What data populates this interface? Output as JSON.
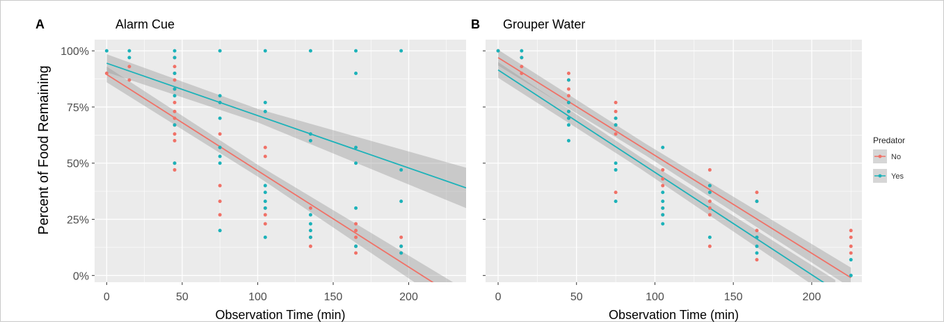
{
  "figure": {
    "ylabel": "Percent of Food Remaining",
    "legend": {
      "title": "Predator",
      "items": [
        {
          "label": "No",
          "color": "#F07167"
        },
        {
          "label": "Yes",
          "color": "#1CB2B9"
        }
      ]
    }
  },
  "chart_data": [
    {
      "type": "scatter",
      "panel_letter": "A",
      "title": "Alarm Cue",
      "xlabel": "Observation Time (min)",
      "ylabel": "Percent of Food Remaining",
      "xlim": [
        -8,
        238
      ],
      "ylim": [
        -0.03,
        1.05
      ],
      "x_ticks": [
        0,
        50,
        100,
        150,
        200
      ],
      "x_tick_labels": [
        "0",
        "50",
        "100",
        "150",
        "200"
      ],
      "y_ticks": [
        0,
        0.25,
        0.5,
        0.75,
        1.0
      ],
      "y_tick_labels": [
        "0%",
        "25%",
        "50%",
        "75%",
        "100%"
      ],
      "grid": true,
      "series": [
        {
          "name": "No",
          "color": "#F07167",
          "points": [
            [
              0,
              0.9
            ],
            [
              15,
              0.93
            ],
            [
              15,
              0.87
            ],
            [
              45,
              0.97
            ],
            [
              45,
              0.93
            ],
            [
              45,
              0.9
            ],
            [
              45,
              0.87
            ],
            [
              45,
              0.83
            ],
            [
              45,
              0.77
            ],
            [
              45,
              0.73
            ],
            [
              45,
              0.7
            ],
            [
              45,
              0.67
            ],
            [
              45,
              0.63
            ],
            [
              45,
              0.6
            ],
            [
              45,
              0.5
            ],
            [
              45,
              0.47
            ],
            [
              75,
              0.63
            ],
            [
              75,
              0.57
            ],
            [
              75,
              0.4
            ],
            [
              75,
              0.33
            ],
            [
              75,
              0.27
            ],
            [
              105,
              0.57
            ],
            [
              105,
              0.53
            ],
            [
              105,
              0.3
            ],
            [
              105,
              0.27
            ],
            [
              105,
              0.23
            ],
            [
              135,
              0.3
            ],
            [
              135,
              0.17
            ],
            [
              135,
              0.13
            ],
            [
              165,
              0.23
            ],
            [
              165,
              0.2
            ],
            [
              165,
              0.17
            ],
            [
              165,
              0.13
            ],
            [
              165,
              0.1
            ],
            [
              195,
              0.17
            ],
            [
              195,
              0.13
            ],
            [
              195,
              0.1
            ]
          ],
          "fit": {
            "x": [
              0,
              238
            ],
            "y": [
              0.895,
              -0.125
            ]
          },
          "ci_halfwidth_at_ends": [
            0.035,
            0.06
          ]
        },
        {
          "name": "Yes",
          "color": "#1CB2B9",
          "points": [
            [
              0,
              1.0
            ],
            [
              15,
              1.0
            ],
            [
              15,
              0.97
            ],
            [
              45,
              1.0
            ],
            [
              45,
              0.97
            ],
            [
              45,
              0.9
            ],
            [
              45,
              0.83
            ],
            [
              45,
              0.8
            ],
            [
              45,
              0.67
            ],
            [
              45,
              0.5
            ],
            [
              75,
              1.0
            ],
            [
              75,
              0.8
            ],
            [
              75,
              0.77
            ],
            [
              75,
              0.7
            ],
            [
              75,
              0.57
            ],
            [
              75,
              0.53
            ],
            [
              75,
              0.5
            ],
            [
              75,
              0.2
            ],
            [
              105,
              1.0
            ],
            [
              105,
              0.77
            ],
            [
              105,
              0.73
            ],
            [
              105,
              0.4
            ],
            [
              105,
              0.37
            ],
            [
              105,
              0.33
            ],
            [
              105,
              0.3
            ],
            [
              105,
              0.17
            ],
            [
              135,
              1.0
            ],
            [
              135,
              0.63
            ],
            [
              135,
              0.6
            ],
            [
              135,
              0.27
            ],
            [
              135,
              0.23
            ],
            [
              135,
              0.2
            ],
            [
              135,
              0.17
            ],
            [
              165,
              1.0
            ],
            [
              165,
              0.9
            ],
            [
              165,
              0.57
            ],
            [
              165,
              0.5
            ],
            [
              165,
              0.3
            ],
            [
              165,
              0.13
            ],
            [
              195,
              1.0
            ],
            [
              195,
              0.47
            ],
            [
              195,
              0.33
            ],
            [
              195,
              0.13
            ],
            [
              195,
              0.1
            ]
          ],
          "fit": {
            "x": [
              0,
              238
            ],
            "y": [
              0.945,
              0.39
            ]
          },
          "ci_halfwidth_at_ends": [
            0.04,
            0.09
          ]
        }
      ]
    },
    {
      "type": "scatter",
      "panel_letter": "B",
      "title": "Grouper Water",
      "xlabel": "Observation Time (min)",
      "ylabel": "",
      "xlim": [
        -8,
        232
      ],
      "ylim": [
        -0.03,
        1.05
      ],
      "x_ticks": [
        0,
        50,
        100,
        150,
        200
      ],
      "x_tick_labels": [
        "0",
        "50",
        "100",
        "150",
        "200"
      ],
      "y_ticks": [
        0,
        0.25,
        0.5,
        0.75,
        1.0
      ],
      "y_tick_labels": [],
      "grid": true,
      "series": [
        {
          "name": "No",
          "color": "#F07167",
          "points": [
            [
              0,
              1.0
            ],
            [
              15,
              0.97
            ],
            [
              15,
              0.93
            ],
            [
              15,
              0.9
            ],
            [
              45,
              0.9
            ],
            [
              45,
              0.87
            ],
            [
              45,
              0.83
            ],
            [
              45,
              0.8
            ],
            [
              45,
              0.77
            ],
            [
              45,
              0.73
            ],
            [
              75,
              0.77
            ],
            [
              75,
              0.73
            ],
            [
              75,
              0.7
            ],
            [
              75,
              0.67
            ],
            [
              75,
              0.63
            ],
            [
              75,
              0.37
            ],
            [
              105,
              0.47
            ],
            [
              105,
              0.43
            ],
            [
              105,
              0.4
            ],
            [
              105,
              0.3
            ],
            [
              105,
              0.27
            ],
            [
              135,
              0.47
            ],
            [
              135,
              0.4
            ],
            [
              135,
              0.33
            ],
            [
              135,
              0.3
            ],
            [
              135,
              0.27
            ],
            [
              135,
              0.13
            ],
            [
              165,
              0.37
            ],
            [
              165,
              0.33
            ],
            [
              165,
              0.2
            ],
            [
              165,
              0.17
            ],
            [
              165,
              0.07
            ],
            [
              225,
              0.2
            ],
            [
              225,
              0.17
            ],
            [
              225,
              0.13
            ],
            [
              225,
              0.1
            ]
          ],
          "fit": {
            "x": [
              0,
              225
            ],
            "y": [
              0.97,
              -0.01
            ]
          },
          "ci_halfwidth_at_ends": [
            0.035,
            0.045
          ]
        },
        {
          "name": "Yes",
          "color": "#1CB2B9",
          "points": [
            [
              0,
              1.0
            ],
            [
              15,
              1.0
            ],
            [
              15,
              0.97
            ],
            [
              45,
              0.87
            ],
            [
              45,
              0.77
            ],
            [
              45,
              0.73
            ],
            [
              45,
              0.7
            ],
            [
              45,
              0.67
            ],
            [
              45,
              0.6
            ],
            [
              75,
              0.7
            ],
            [
              75,
              0.67
            ],
            [
              75,
              0.5
            ],
            [
              75,
              0.47
            ],
            [
              75,
              0.33
            ],
            [
              105,
              0.57
            ],
            [
              105,
              0.37
            ],
            [
              105,
              0.33
            ],
            [
              105,
              0.3
            ],
            [
              105,
              0.27
            ],
            [
              105,
              0.23
            ],
            [
              135,
              0.4
            ],
            [
              135,
              0.37
            ],
            [
              135,
              0.17
            ],
            [
              165,
              0.33
            ],
            [
              165,
              0.17
            ],
            [
              165,
              0.13
            ],
            [
              165,
              0.1
            ],
            [
              225,
              0.07
            ],
            [
              225,
              0.0
            ]
          ],
          "fit": {
            "x": [
              0,
              215
            ],
            "y": [
              0.915,
              -0.065
            ]
          },
          "ci_halfwidth_at_ends": [
            0.035,
            0.045
          ]
        }
      ]
    }
  ]
}
